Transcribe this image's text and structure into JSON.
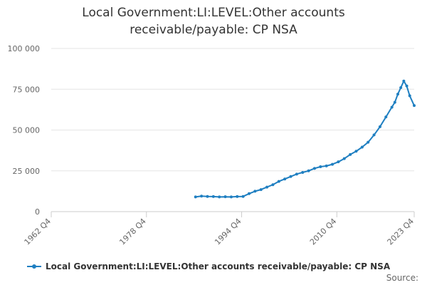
{
  "chart_data": {
    "type": "line",
    "title_lines": [
      "Local Government:LI:LEVEL:Other accounts",
      "receivable/payable: CP NSA"
    ],
    "y_ticks": [
      {
        "value": 0,
        "label": "0"
      },
      {
        "value": 25000,
        "label": "25 000"
      },
      {
        "value": 50000,
        "label": "50 000"
      },
      {
        "value": 75000,
        "label": "75 000"
      },
      {
        "value": 100000,
        "label": "100 000"
      }
    ],
    "ylim": [
      0,
      100000
    ],
    "x_ticks": [
      {
        "value": 1962.75,
        "label": "1962 Q4"
      },
      {
        "value": 1978.75,
        "label": "1978 Q4"
      },
      {
        "value": 1994.75,
        "label": "1994 Q4"
      },
      {
        "value": 2010.75,
        "label": "2010 Q4"
      },
      {
        "value": 2023.75,
        "label": "2023 Q4"
      }
    ],
    "xlim": [
      1962.75,
      2023.75
    ],
    "grid": "horizontal",
    "legend_position": "bottom",
    "series": [
      {
        "name": "Local Government:LI:LEVEL:Other accounts receivable/payable: CP NSA",
        "color": "#1f7fc1",
        "x": [
          1987.0,
          1988.0,
          1989.0,
          1990.0,
          1991.0,
          1992.0,
          1993.0,
          1994.0,
          1995.0,
          1996.0,
          1997.0,
          1998.0,
          1999.0,
          2000.0,
          2001.0,
          2002.0,
          2003.0,
          2004.0,
          2005.0,
          2006.0,
          2007.0,
          2008.0,
          2009.0,
          2010.0,
          2011.0,
          2012.0,
          2013.0,
          2014.0,
          2015.0,
          2016.0,
          2017.0,
          2018.0,
          2019.0,
          2020.0,
          2020.5,
          2021.0,
          2021.5,
          2022.0,
          2022.5,
          2023.0,
          2023.75
        ],
        "values": [
          9000,
          9500,
          9300,
          9200,
          9000,
          9100,
          9000,
          9200,
          9300,
          11000,
          12500,
          13500,
          15000,
          16500,
          18500,
          20000,
          21500,
          23000,
          24000,
          25000,
          26500,
          27500,
          28000,
          29000,
          30500,
          32500,
          35000,
          37000,
          39500,
          42500,
          47000,
          52000,
          58000,
          64000,
          67000,
          72000,
          76000,
          80000,
          77000,
          71000,
          65000
        ]
      }
    ]
  },
  "legend": {
    "label": "Local Government:LI:LEVEL:Other accounts receivable/payable: CP NSA"
  },
  "source": {
    "label": "Source:"
  },
  "colors": {
    "series": "#1f7fc1",
    "grid": "#e6e6e6",
    "axis": "#cccccc",
    "text": "#333333"
  }
}
